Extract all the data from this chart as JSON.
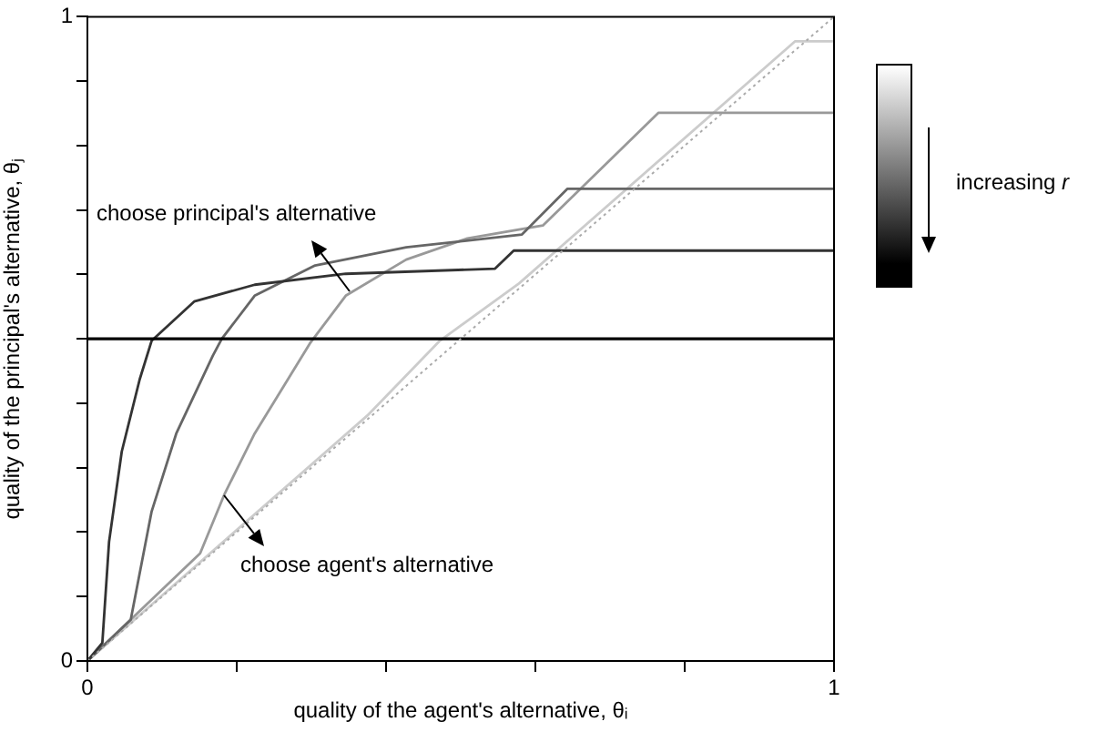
{
  "chart_data": {
    "type": "line",
    "xlabel": "quality of the agent's alternative, θᵢ",
    "ylabel": "quality of the principal's alternative, θⱼ",
    "xlim": [
      0,
      1
    ],
    "ylim": [
      0,
      1
    ],
    "xticks": [
      0,
      {
        "value": 0.2,
        "label": null
      },
      {
        "value": 0.4,
        "label": null
      },
      {
        "value": 0.6,
        "label": null
      },
      {
        "value": 0.8,
        "label": null
      },
      1
    ],
    "yticks": [
      0,
      {
        "value": 0.1,
        "label": null
      },
      {
        "value": 0.2,
        "label": null
      },
      {
        "value": 0.3,
        "label": null
      },
      {
        "value": 0.4,
        "label": null
      },
      {
        "value": 0.5,
        "label": null
      },
      {
        "value": 0.6,
        "label": null
      },
      {
        "value": 0.7,
        "label": null
      },
      {
        "value": 0.8,
        "label": null
      },
      {
        "value": 0.9,
        "label": null
      },
      1
    ],
    "grid": false,
    "legend": false,
    "marker": "none",
    "series": [
      {
        "color": "#aaaaaa",
        "line_style": "dotted",
        "x": [
          0,
          1
        ],
        "values": [
          0,
          1
        ]
      },
      {
        "color": "#000000",
        "x": [
          0,
          1
        ],
        "values": [
          0.5,
          0.5
        ]
      },
      {
        "color": "#333333",
        "x": [
          0,
          0.02,
          0.029,
          0.046,
          0.07,
          0.086,
          0.143,
          0.224,
          0.346,
          0.546,
          0.571,
          1
        ],
        "values": [
          0,
          0.028,
          0.185,
          0.325,
          0.437,
          0.497,
          0.558,
          0.584,
          0.601,
          0.609,
          0.637,
          0.637
        ]
      },
      {
        "color": "#666666",
        "x": [
          0,
          0.058,
          0.086,
          0.119,
          0.168,
          0.18,
          0.224,
          0.305,
          0.427,
          0.582,
          0.643,
          1
        ],
        "values": [
          0,
          0.064,
          0.232,
          0.353,
          0.474,
          0.5,
          0.567,
          0.614,
          0.642,
          0.662,
          0.733,
          0.733
        ]
      },
      {
        "color": "#999999",
        "x": [
          0,
          0.151,
          0.184,
          0.224,
          0.298,
          0.346,
          0.427,
          0.509,
          0.61,
          0.765,
          1
        ],
        "values": [
          0,
          0.167,
          0.26,
          0.353,
          0.493,
          0.567,
          0.623,
          0.656,
          0.676,
          0.851,
          0.851
        ]
      },
      {
        "color": "#cccccc",
        "x": [
          0,
          0.375,
          0.472,
          0.578,
          0.948,
          1
        ],
        "values": [
          0,
          0.381,
          0.497,
          0.586,
          0.962,
          0.962
        ]
      }
    ],
    "annotations": [
      "choose principal's alternative",
      "choose agent's alternative",
      "increasing r"
    ]
  }
}
